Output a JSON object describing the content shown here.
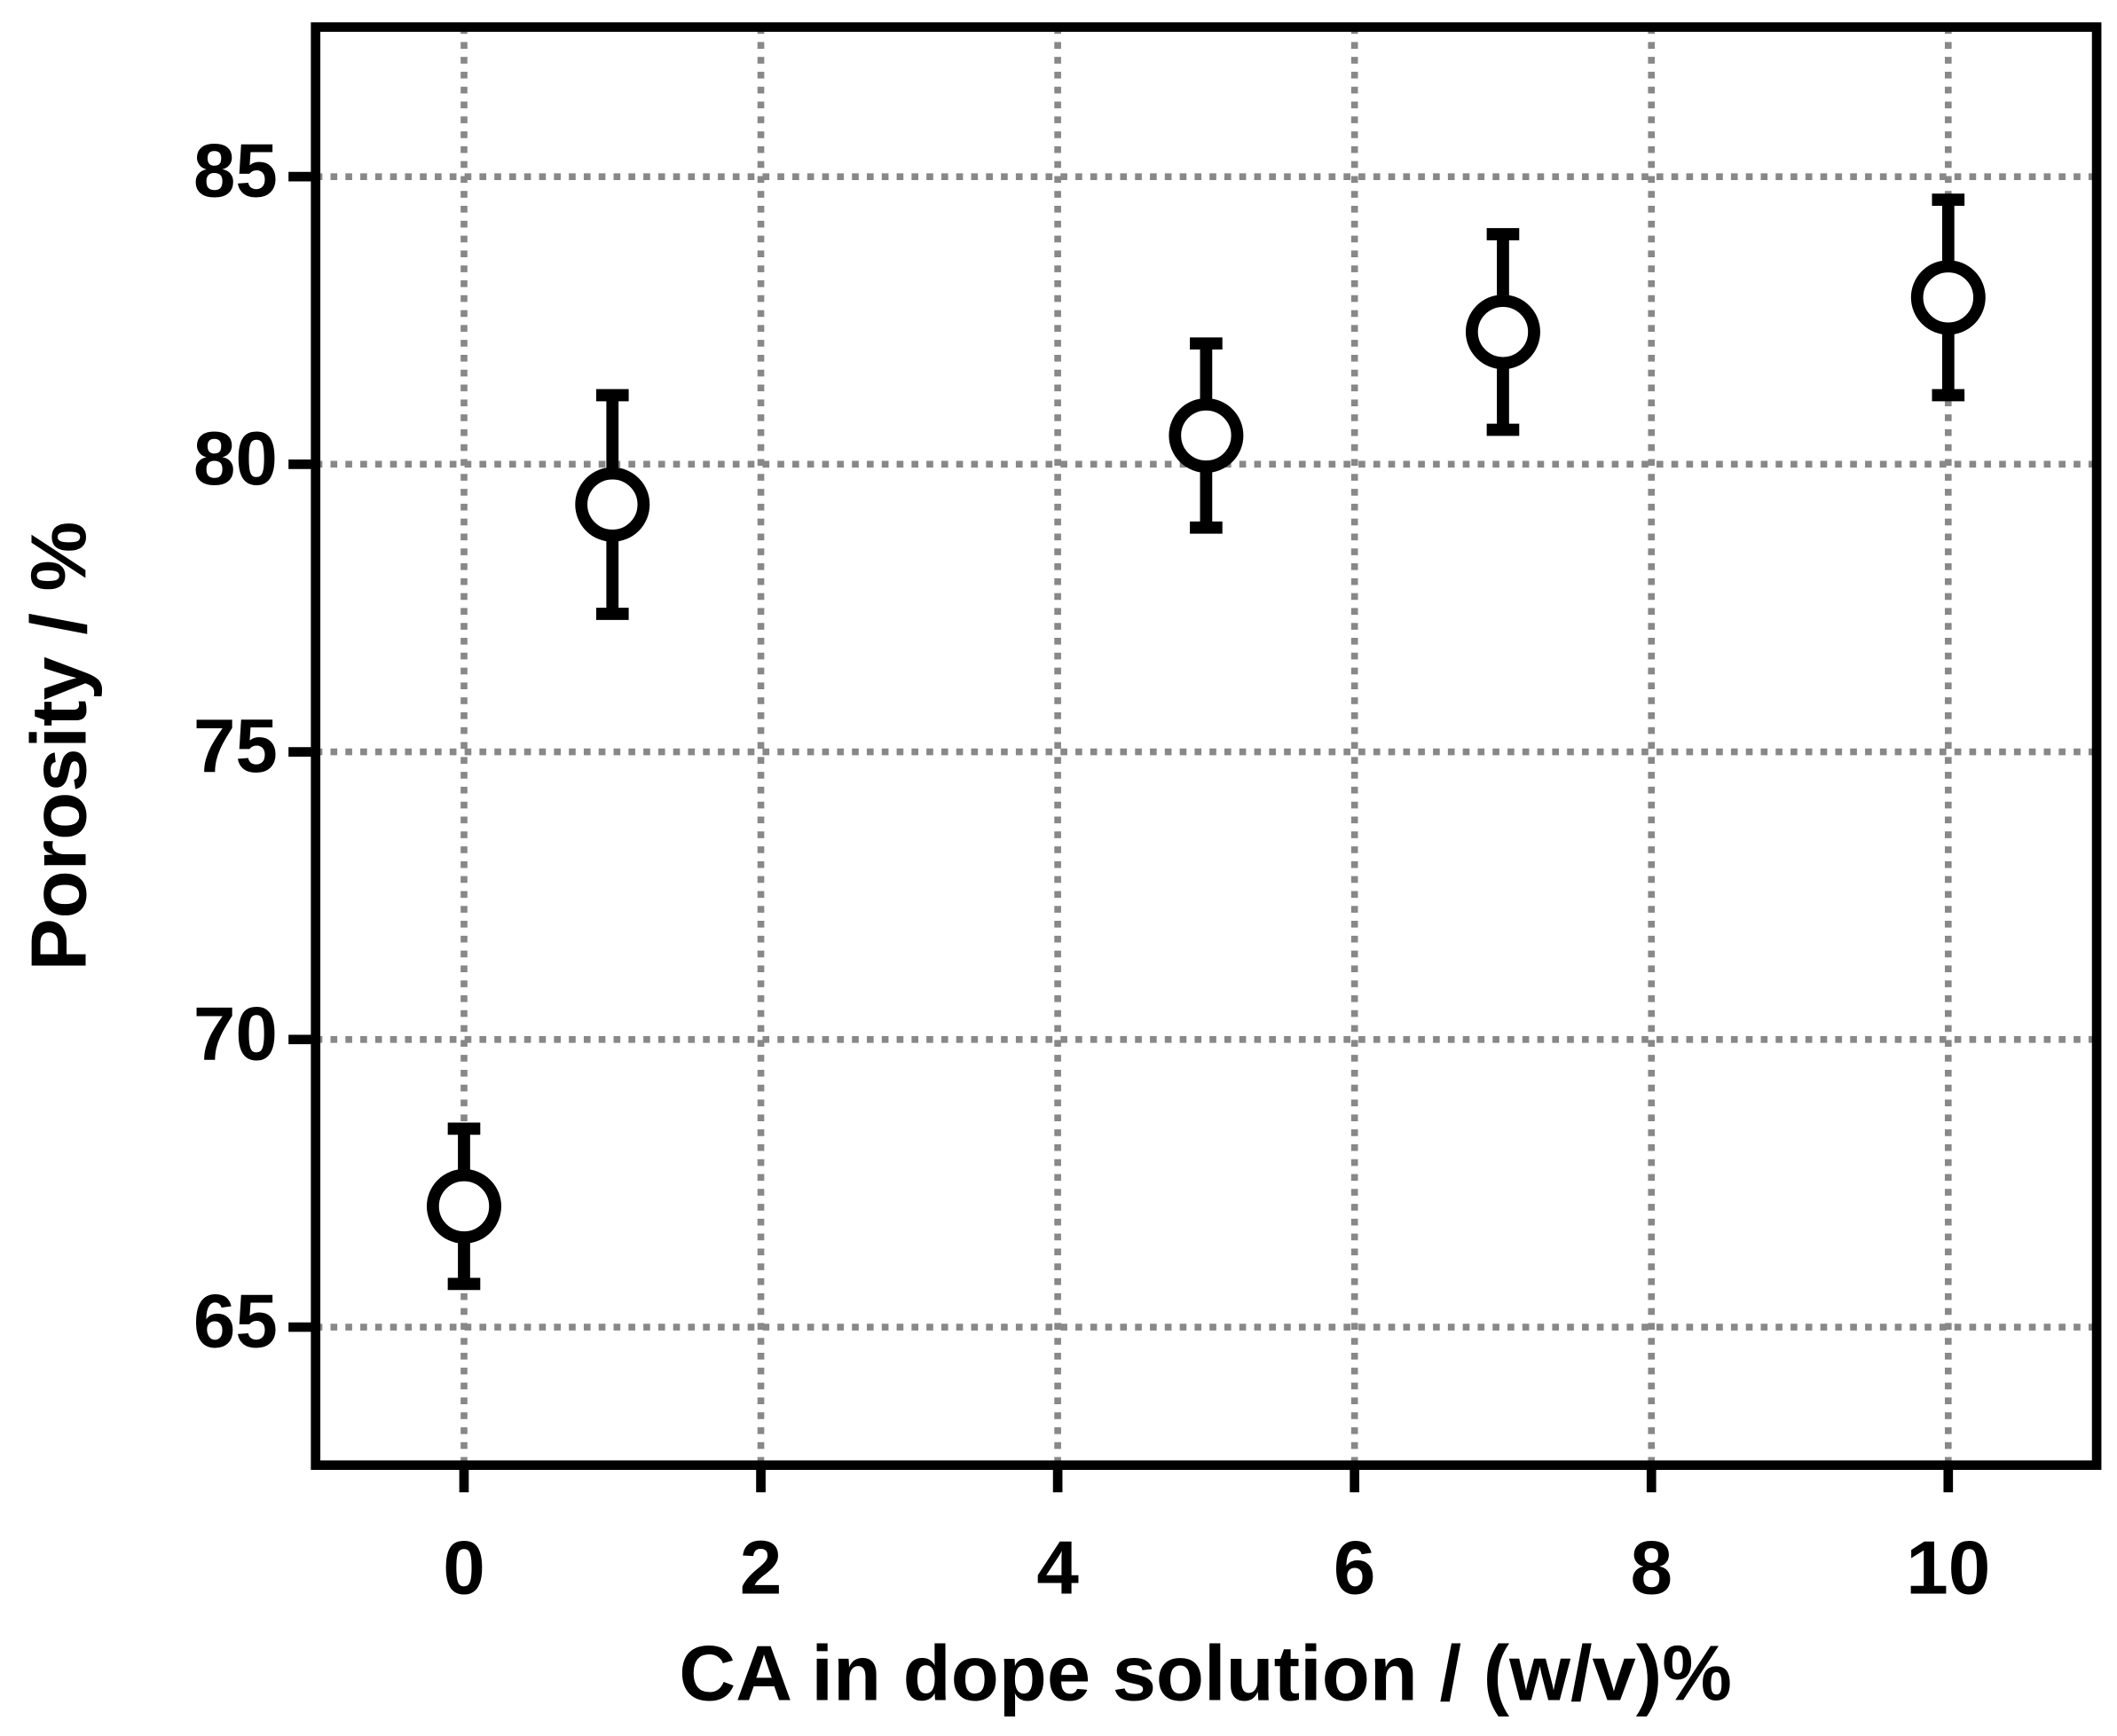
{
  "chart_data": {
    "type": "scatter",
    "x_label": "CA in dope solution / (w/v)%",
    "y_label": "Porosity / %",
    "x": [
      0,
      1,
      5,
      7,
      10
    ],
    "series": [
      {
        "color": "#000000",
        "values": [
          67.1,
          79.3,
          80.5,
          82.3,
          82.9
        ],
        "errors": [
          1.35,
          1.9,
          1.6,
          1.7,
          1.7
        ]
      }
    ],
    "xlim": [
      -1,
      11
    ],
    "xticks": [
      0,
      2,
      4,
      6,
      8,
      10
    ],
    "ylim": [
      62.6,
      87.6
    ],
    "yticks": [
      65,
      70,
      75,
      80,
      85
    ],
    "grid": true
  }
}
